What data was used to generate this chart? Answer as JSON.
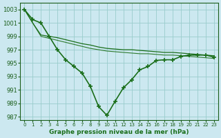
{
  "line_main": {
    "x": [
      0,
      1,
      2,
      3,
      4,
      5,
      6,
      7,
      8,
      9,
      10,
      11,
      12,
      13,
      14,
      15,
      16,
      17,
      18,
      19,
      20,
      21,
      22,
      23
    ],
    "y": [
      1003,
      1001.5,
      1001,
      999,
      997,
      995.5,
      994.5,
      993.5,
      991.5,
      988.5,
      987.2,
      989.3,
      991.3,
      992.5,
      994.0,
      994.5,
      995.4,
      995.5,
      995.5,
      996.0,
      996.2,
      996.2,
      996.2,
      995.9
    ],
    "color": "#1a6e1a",
    "linewidth": 1.2,
    "markersize": 4.5
  },
  "line_upper1": {
    "x": [
      0,
      1,
      2,
      3,
      4,
      5,
      6,
      7,
      8,
      9,
      10,
      11,
      12,
      13,
      14,
      15,
      16,
      17,
      18,
      19,
      20,
      21,
      22,
      23
    ],
    "y": [
      1003,
      1001,
      999.2,
      999.0,
      998.8,
      998.5,
      998.2,
      997.9,
      997.7,
      997.4,
      997.2,
      997.1,
      997.0,
      997.0,
      996.9,
      996.8,
      996.7,
      996.6,
      996.6,
      996.5,
      996.4,
      996.3,
      996.2,
      996.1
    ],
    "color": "#1a6e1a",
    "linewidth": 0.9
  },
  "line_upper2": {
    "x": [
      0,
      1,
      2,
      3,
      4,
      5,
      6,
      7,
      8,
      9,
      10,
      11,
      12,
      13,
      14,
      15,
      16,
      17,
      18,
      19,
      20,
      21,
      22,
      23
    ],
    "y": [
      1003,
      1001,
      999.0,
      998.7,
      998.4,
      998.1,
      997.8,
      997.5,
      997.2,
      997.0,
      996.8,
      996.7,
      996.6,
      996.5,
      996.4,
      996.4,
      996.3,
      996.2,
      996.2,
      996.1,
      996.0,
      995.9,
      995.8,
      995.7
    ],
    "color": "#2d7a2d",
    "linewidth": 0.8
  },
  "xlim": [
    -0.5,
    23.5
  ],
  "ylim": [
    986.5,
    1004.0
  ],
  "yticks": [
    987,
    989,
    991,
    993,
    995,
    997,
    999,
    1001,
    1003
  ],
  "xticks": [
    0,
    1,
    2,
    3,
    4,
    5,
    6,
    7,
    8,
    9,
    10,
    11,
    12,
    13,
    14,
    15,
    16,
    17,
    18,
    19,
    20,
    21,
    22,
    23
  ],
  "xlabel": "Graphe pression niveau de la mer (hPa)",
  "bg_color": "#cce8f0",
  "grid_color": "#99cccc",
  "line_color": "#1a6e1a",
  "text_color": "#1a6e1a",
  "tick_color": "#1a5e1a"
}
